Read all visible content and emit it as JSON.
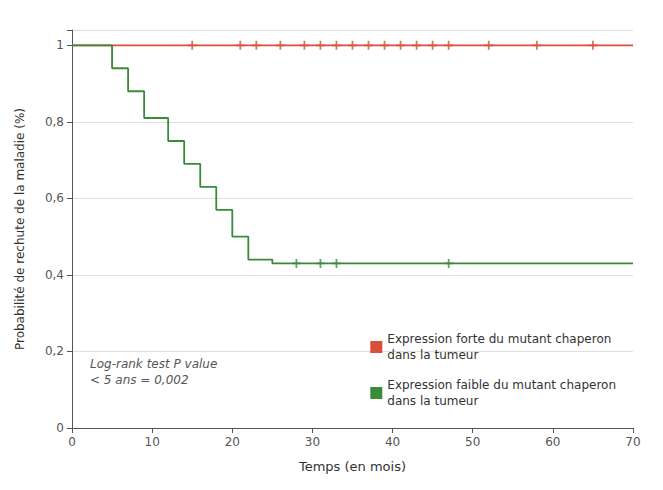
{
  "chart_data": {
    "type": "line",
    "xlabel": "Temps (en mois)",
    "ylabel": "Probabilité de rechute de la maladie (%)",
    "annotation": "Log-rank test P value\n< 5 ans = 0,002",
    "xlim": [
      0,
      70
    ],
    "xticks": [
      0,
      10,
      20,
      30,
      40,
      50,
      60,
      70
    ],
    "ylim": [
      0,
      1.04
    ],
    "yticks": [
      0,
      {
        "value": 0.2,
        "label": "0,2"
      },
      {
        "value": 0.4,
        "label": "0,4"
      },
      {
        "value": 0.6,
        "label": "0,6"
      },
      {
        "value": 0.8,
        "label": "0,8"
      },
      1
    ],
    "grid": true,
    "legend": "lower right",
    "series": [
      {
        "name": "Expression forte du mutant chaperon\ndans la tumeur",
        "type": "line",
        "color": "#d94f3a",
        "x": [
          0,
          70
        ],
        "values": [
          1.0,
          1.0
        ]
      },
      {
        "name": "Expression faible du mutant chaperon\ndans la tumeur",
        "type": "line",
        "color": "#3a8a3a",
        "x": [
          0,
          5,
          5,
          7,
          7,
          9,
          9,
          12,
          12,
          14,
          14,
          16,
          16,
          18,
          18,
          20,
          20,
          22,
          22,
          25,
          25,
          70
        ],
        "values": [
          1.0,
          1.0,
          0.94,
          0.94,
          0.88,
          0.88,
          0.81,
          0.81,
          0.75,
          0.75,
          0.69,
          0.69,
          0.63,
          0.63,
          0.57,
          0.57,
          0.5,
          0.5,
          0.44,
          0.44,
          0.43,
          0.43
        ]
      },
      {
        "type": "scatter",
        "marker": "+",
        "color": "#d94f3a",
        "x": [
          15,
          21,
          23,
          26,
          29,
          31,
          33,
          35,
          37,
          39,
          41,
          43,
          45,
          47,
          52,
          58,
          65
        ],
        "values": [
          1.0,
          1.0,
          1.0,
          1.0,
          1.0,
          1.0,
          1.0,
          1.0,
          1.0,
          1.0,
          1.0,
          1.0,
          1.0,
          1.0,
          1.0,
          1.0,
          1.0
        ]
      },
      {
        "type": "scatter",
        "marker": "+",
        "color": "#3a8a3a",
        "x": [
          28,
          31,
          33,
          47
        ],
        "values": [
          0.43,
          0.43,
          0.43,
          0.43
        ]
      }
    ]
  }
}
